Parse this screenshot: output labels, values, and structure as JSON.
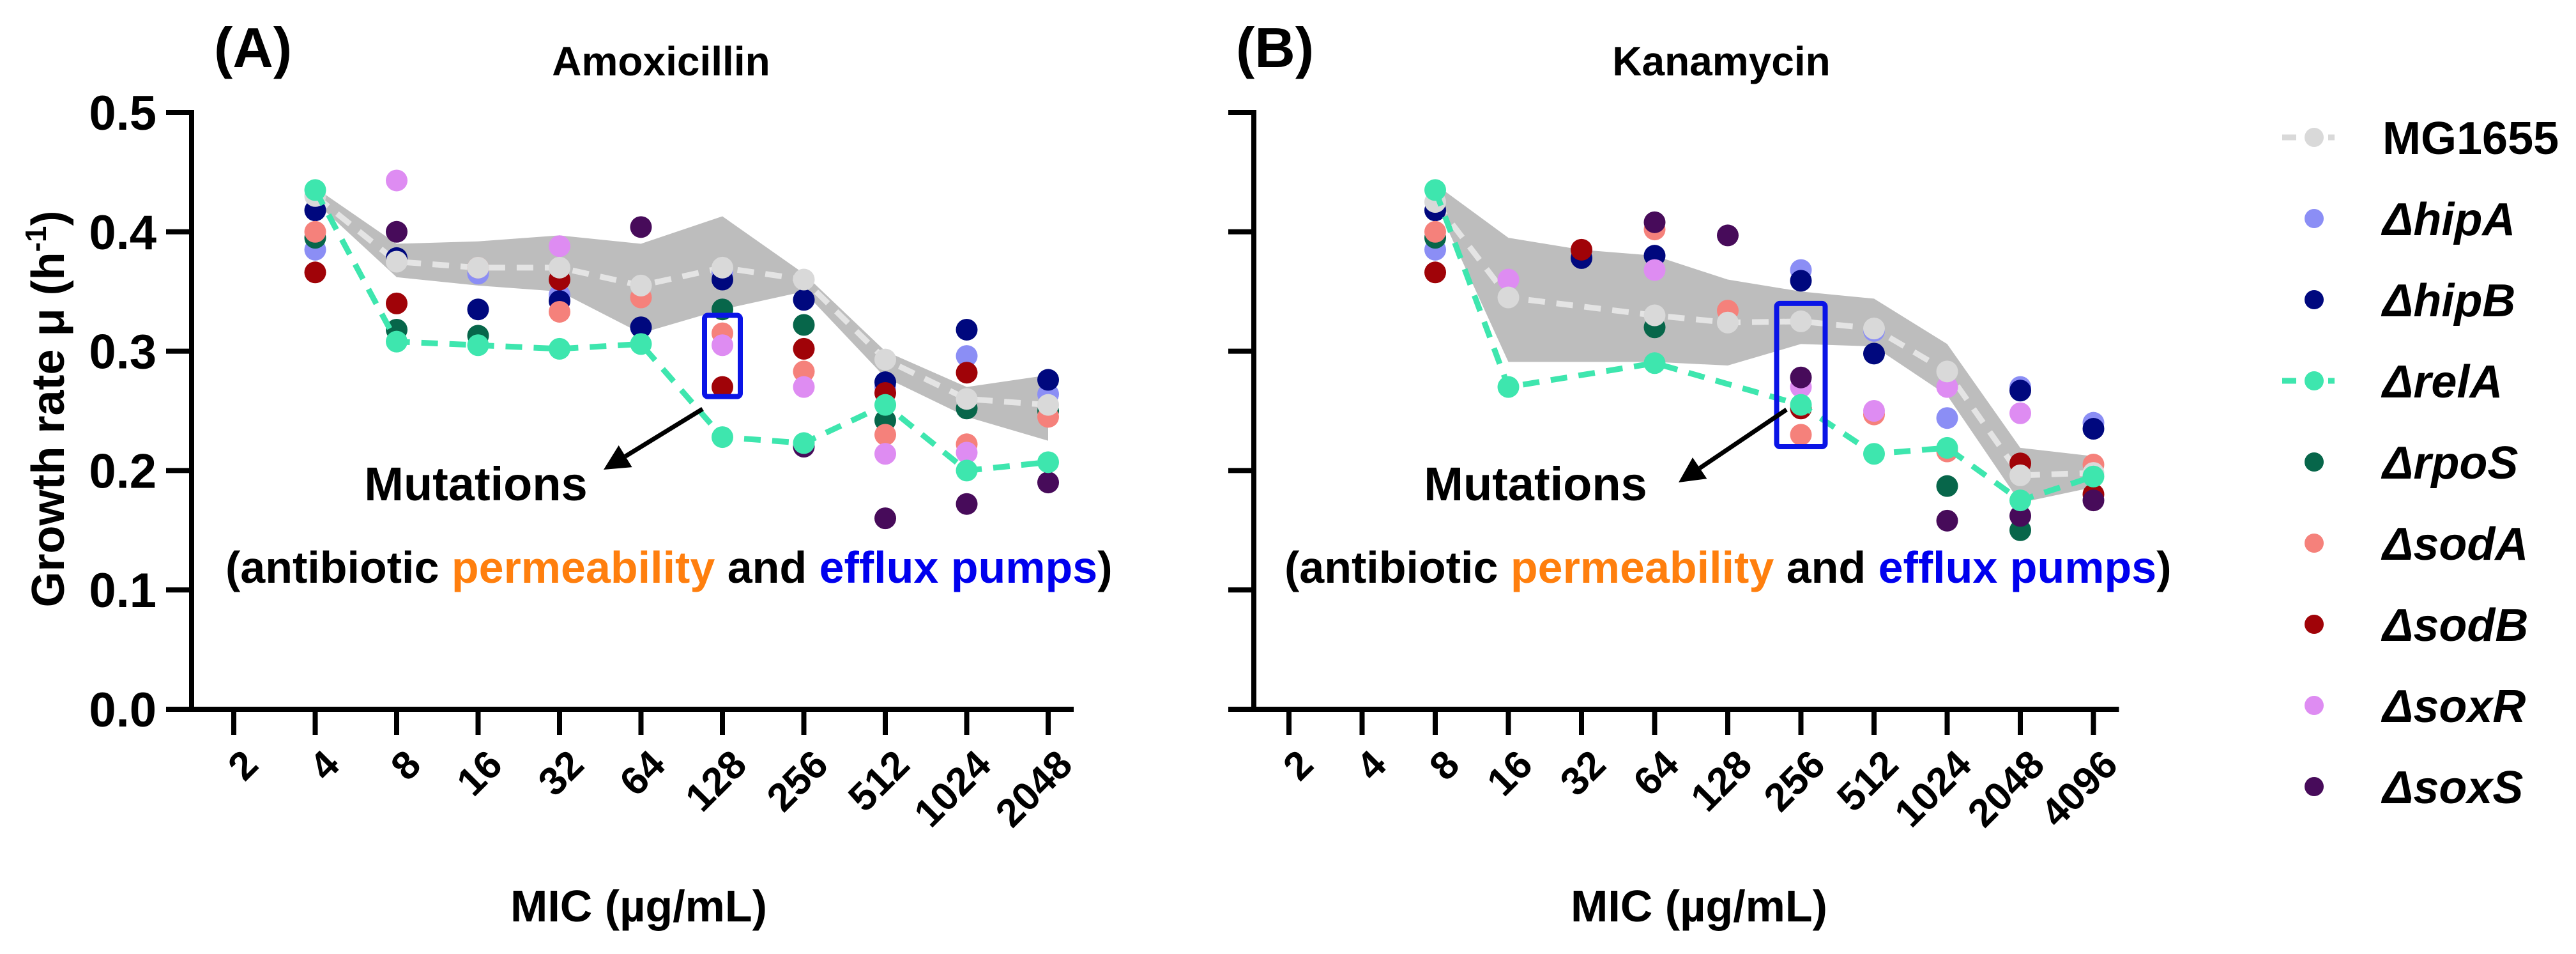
{
  "chart_data": [
    {
      "type": "scatter",
      "panel_label": "(A)",
      "title": "Amoxicillin",
      "xlabel": "MIC (µg/mL)",
      "ylabel_main": "Growth rate μ (h",
      "ylabel_sup": "-1",
      "ylabel_end": ")",
      "ylim": [
        0,
        0.5
      ],
      "yticks": [
        "0.0",
        "0.1",
        "0.2",
        "0.3",
        "0.4",
        "0.5"
      ],
      "categories": [
        "2",
        "4",
        "8",
        "16",
        "32",
        "64",
        "128",
        "256",
        "512",
        "1024",
        "2048"
      ],
      "band": {
        "upper": [
          null,
          0.437,
          0.39,
          0.392,
          0.397,
          0.39,
          0.413,
          0.365,
          0.3,
          0.27,
          0.28
        ],
        "lower": [
          null,
          0.425,
          0.362,
          0.355,
          0.35,
          0.315,
          0.335,
          0.35,
          0.278,
          0.245,
          0.225
        ]
      },
      "series": [
        {
          "name": "MG1655",
          "values": [
            null,
            0.43,
            0.375,
            0.37,
            0.37,
            0.355,
            0.37,
            0.36,
            0.293,
            0.26,
            0.255
          ]
        },
        {
          "name": "ΔhipA",
          "values": [
            null,
            0.385,
            null,
            0.365,
            0.347,
            null,
            0.366,
            null,
            0.27,
            0.296,
            0.264
          ]
        },
        {
          "name": "ΔhipB",
          "values": [
            null,
            0.418,
            0.378,
            0.335,
            0.342,
            0.32,
            0.36,
            0.343,
            0.274,
            0.318,
            0.276
          ]
        },
        {
          "name": "ΔrelA",
          "values": [
            null,
            0.435,
            0.308,
            0.305,
            0.302,
            0.306,
            0.228,
            0.223,
            0.255,
            0.2,
            0.207
          ]
        },
        {
          "name": "ΔrpoS",
          "values": [
            null,
            0.395,
            0.318,
            0.313,
            null,
            null,
            0.335,
            0.322,
            0.242,
            0.252,
            0.25
          ]
        },
        {
          "name": "ΔsodA",
          "values": [
            null,
            0.4,
            null,
            0.37,
            0.333,
            0.345,
            0.315,
            0.283,
            0.23,
            0.222,
            0.245
          ]
        },
        {
          "name": "ΔsodB",
          "values": [
            null,
            0.366,
            0.34,
            null,
            0.36,
            null,
            0.27,
            0.302,
            0.265,
            0.282,
            null
          ]
        },
        {
          "name": "ΔsoxR",
          "values": [
            null,
            null,
            0.443,
            null,
            0.388,
            null,
            0.305,
            0.27,
            0.214,
            0.215,
            null
          ]
        },
        {
          "name": "ΔsoxS",
          "values": [
            null,
            null,
            0.4,
            null,
            null,
            0.404,
            null,
            0.22,
            0.16,
            0.172,
            0.19
          ]
        }
      ],
      "annotation": {
        "highlight_category": "128",
        "highlight_range": [
          0.262,
          0.33
        ],
        "label": "Mutations",
        "detail": {
          "open": "(antibiotic ",
          "permeability": "permeability",
          "and": " and ",
          "efflux": "efflux pumps",
          "close": ")"
        }
      }
    },
    {
      "type": "scatter",
      "panel_label": "(B)",
      "title": "Kanamycin",
      "xlabel": "MIC (µg/mL)",
      "ylim": [
        0,
        0.5
      ],
      "categories": [
        "2",
        "4",
        "8",
        "16",
        "32",
        "64",
        "128",
        "256",
        "512",
        "1024",
        "2048",
        "4096"
      ],
      "band": {
        "upper": [
          null,
          null,
          0.44,
          0.395,
          0.385,
          0.38,
          0.36,
          0.35,
          0.344,
          0.306,
          0.219,
          0.212
        ],
        "lower": [
          null,
          null,
          0.425,
          0.291,
          0.291,
          0.291,
          0.288,
          0.306,
          0.304,
          0.263,
          0.173,
          0.186
        ]
      },
      "series": [
        {
          "name": "MG1655",
          "values": [
            null,
            null,
            0.425,
            0.345,
            null,
            0.33,
            0.324,
            0.325,
            0.319,
            0.283,
            0.196,
            0.198
          ]
        },
        {
          "name": "ΔhipA",
          "values": [
            null,
            null,
            0.385,
            null,
            null,
            null,
            null,
            0.368,
            0.317,
            0.244,
            0.27,
            0.24
          ]
        },
        {
          "name": "ΔhipB",
          "values": [
            null,
            null,
            0.418,
            null,
            0.378,
            0.38,
            null,
            0.359,
            0.298,
            null,
            0.267,
            0.235
          ]
        },
        {
          "name": "ΔrelA",
          "values": [
            null,
            null,
            0.435,
            0.27,
            null,
            0.29,
            null,
            0.255,
            0.214,
            0.219,
            0.175,
            0.195
          ]
        },
        {
          "name": "ΔrpoS",
          "values": [
            null,
            null,
            0.395,
            null,
            null,
            0.32,
            null,
            null,
            null,
            0.187,
            0.15,
            null
          ]
        },
        {
          "name": "ΔsodA",
          "values": [
            null,
            null,
            0.4,
            null,
            null,
            0.402,
            0.334,
            0.23,
            0.247,
            0.216,
            null,
            0.205
          ]
        },
        {
          "name": "ΔsodB",
          "values": [
            null,
            null,
            0.366,
            null,
            0.385,
            null,
            null,
            0.252,
            null,
            null,
            0.206,
            0.18
          ]
        },
        {
          "name": "ΔsoxR",
          "values": [
            null,
            null,
            null,
            0.36,
            null,
            0.368,
            null,
            0.27,
            0.25,
            0.27,
            0.248,
            null
          ]
        },
        {
          "name": "ΔsoxS",
          "values": [
            null,
            null,
            null,
            null,
            null,
            0.408,
            0.397,
            0.278,
            null,
            0.158,
            0.162,
            0.175
          ]
        }
      ],
      "annotation": {
        "highlight_category": "256",
        "highlight_range": [
          0.22,
          0.34
        ],
        "label": "Mutations",
        "detail": {
          "open": "(antibiotic ",
          "permeability": "permeability",
          "and": " and ",
          "efflux": "efflux pumps",
          "close": ")"
        }
      }
    }
  ],
  "legend": {
    "placement": "right",
    "items": [
      {
        "name": "MG1655",
        "color": "#d9d9d9",
        "line": true
      },
      {
        "name": "ΔhipA",
        "color": "#8b8ef5",
        "line": false
      },
      {
        "name": "ΔhipB",
        "color": "#00087e",
        "line": false
      },
      {
        "name": "ΔrelA",
        "color": "#3ee6ae",
        "line": true
      },
      {
        "name": "ΔrpoS",
        "color": "#07664a",
        "line": false
      },
      {
        "name": "ΔsodA",
        "color": "#f5817b",
        "line": false
      },
      {
        "name": "ΔsodB",
        "color": "#a00308",
        "line": false
      },
      {
        "name": "ΔsoxR",
        "color": "#de8cf2",
        "line": false
      },
      {
        "name": "ΔsoxS",
        "color": "#470b5a",
        "line": false
      }
    ]
  },
  "colors": {
    "band": "#bdbdbd",
    "permeability": "#ff7f0e",
    "efflux": "#0000ee",
    "highlight_box": "#0a14e6"
  }
}
